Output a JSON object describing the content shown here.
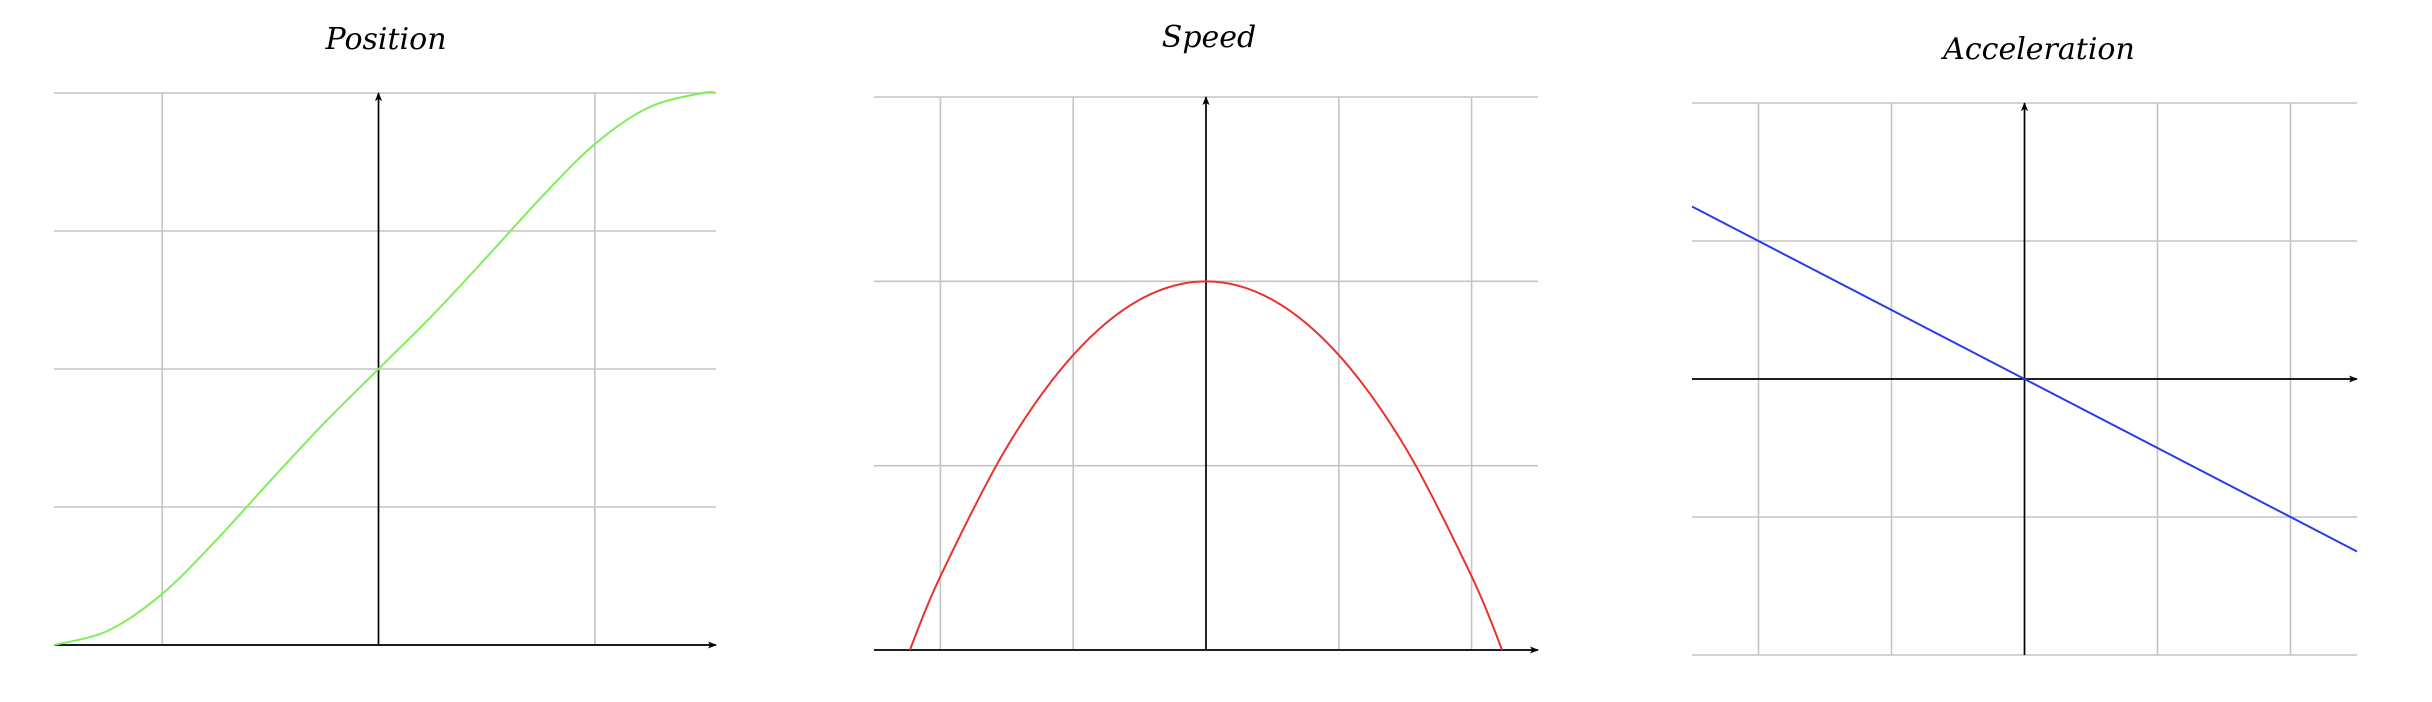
{
  "chart_data": [
    {
      "type": "line",
      "title": "Position",
      "xlabel": "",
      "ylabel": "",
      "xlim": [
        -3.0,
        3.12
      ],
      "ylim": [
        0,
        4
      ],
      "xgrid": [
        -2,
        2
      ],
      "ygrid": [
        0,
        1,
        2,
        3,
        4
      ],
      "grid": true,
      "legend": "none",
      "series": [
        {
          "color": "#80ee5a",
          "x": [
            -3.0,
            -2.5,
            -2.0,
            -1.5,
            -1.0,
            -0.5,
            0.0,
            0.5,
            1.0,
            1.5,
            2.0,
            2.5,
            3.0,
            3.12
          ],
          "y": [
            0.0,
            0.104,
            0.37,
            0.76,
            1.19,
            1.61,
            2.0,
            2.39,
            2.81,
            3.24,
            3.63,
            3.896,
            4.0,
            4.0
          ]
        }
      ]
    },
    {
      "type": "line",
      "title": "Speed",
      "xlabel": "",
      "ylabel": "",
      "xlim": [
        -2.5,
        2.5
      ],
      "ylim": [
        0,
        3
      ],
      "xgrid": [
        -2,
        -1,
        1,
        2
      ],
      "ygrid": [
        1,
        2,
        3
      ],
      "grid": true,
      "legend": "none",
      "series": [
        {
          "color": "#e8342c",
          "x": [
            -2.23,
            -2.0,
            -1.5,
            -1.0,
            -0.5,
            0.0,
            0.5,
            1.0,
            1.5,
            2.0,
            2.23
          ],
          "y": [
            0.0,
            0.4,
            1.1,
            1.6,
            1.9,
            2.0,
            1.9,
            1.6,
            1.1,
            0.4,
            0.0
          ]
        }
      ]
    },
    {
      "type": "line",
      "title": "Acceleration",
      "xlabel": "",
      "ylabel": "",
      "xlim": [
        -2.5,
        2.5
      ],
      "ylim": [
        -2,
        2
      ],
      "xgrid": [
        -2,
        -1,
        1,
        2
      ],
      "ygrid": [
        -2,
        -1,
        1,
        2
      ],
      "grid": true,
      "legend": "none",
      "series": [
        {
          "color": "#2a3ce8",
          "x": [
            -2.5,
            2.5
          ],
          "y": [
            1.25,
            -1.25
          ]
        }
      ]
    }
  ]
}
